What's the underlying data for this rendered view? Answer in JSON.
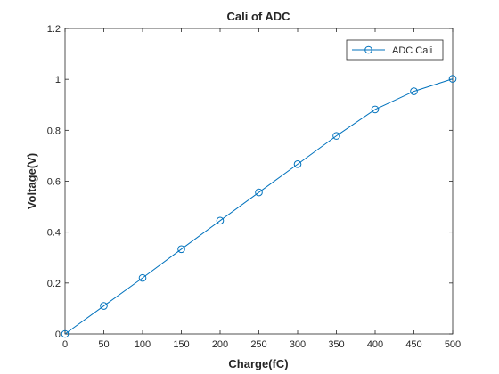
{
  "chart_data": {
    "type": "line",
    "title": "Cali of ADC",
    "xlabel": "Charge(fC)",
    "ylabel": "Voltage(V)",
    "xlim": [
      0,
      500
    ],
    "ylim": [
      0,
      1.2
    ],
    "xticks": [
      "0",
      "50",
      "100",
      "150",
      "200",
      "250",
      "300",
      "350",
      "400",
      "450",
      "500"
    ],
    "yticks": [
      "0",
      "0.2",
      "0.4",
      "0.6",
      "0.8",
      "1",
      "1.2"
    ],
    "grid": false,
    "legend_position": "top-right",
    "series": [
      {
        "name": "ADC Cali",
        "color": "#0072bd",
        "marker": "circle",
        "x": [
          0,
          50,
          100,
          150,
          200,
          250,
          300,
          350,
          400,
          450,
          500
        ],
        "y": [
          0,
          0.11,
          0.22,
          0.333,
          0.445,
          0.556,
          0.667,
          0.778,
          0.882,
          0.953,
          1.002
        ]
      }
    ]
  }
}
